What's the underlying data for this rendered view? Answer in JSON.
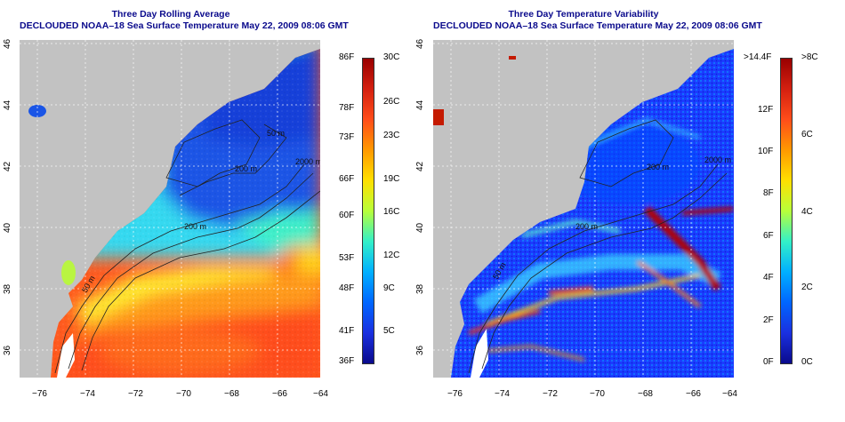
{
  "left_panel": {
    "title_line1": "Three Day Rolling Average",
    "title_line2": "DECLOUDED NOAA–18 Sea Surface Temperature May 22, 2009 08:06 GMT",
    "isobaths": [
      "50 m",
      "200 m",
      "2000 m",
      "200 m",
      "50 m"
    ],
    "colorbar": {
      "fahrenheit": [
        "86F",
        "78F",
        "73F",
        "66F",
        "60F",
        "53F",
        "48F",
        "41F",
        "36F"
      ],
      "celsius": [
        "30C",
        "26C",
        "23C",
        "19C",
        "16C",
        "12C",
        "9C",
        "5C"
      ]
    }
  },
  "right_panel": {
    "title_line1": "Three Day Temperature Variability",
    "title_line2": "DECLOUDED NOAA–18 Sea Surface Temperature May 22, 2009 08:06 GMT",
    "isobaths": [
      "50 m",
      "200 m",
      "2000 m",
      "200 m"
    ],
    "colorbar": {
      "fahrenheit": [
        ">14.4F",
        "12F",
        "10F",
        "8F",
        "6F",
        "4F",
        "2F",
        "0F"
      ],
      "celsius": [
        ">8C",
        "6C",
        "4C",
        "2C",
        "0C"
      ]
    }
  },
  "axes": {
    "longitude_ticks": [
      "−76",
      "−74",
      "−72",
      "−70",
      "−68",
      "−66",
      "−64"
    ],
    "latitude_ticks": [
      "46",
      "44",
      "42",
      "40",
      "38",
      "36"
    ]
  },
  "colors": {
    "land": "#c2c2c2",
    "title": "#0a0a8c",
    "sst_scale": [
      "#0a0a8c",
      "#0033ff",
      "#00a0ff",
      "#00e5e5",
      "#66ff66",
      "#ffff00",
      "#ff9900",
      "#ff3300",
      "#990000"
    ]
  }
}
